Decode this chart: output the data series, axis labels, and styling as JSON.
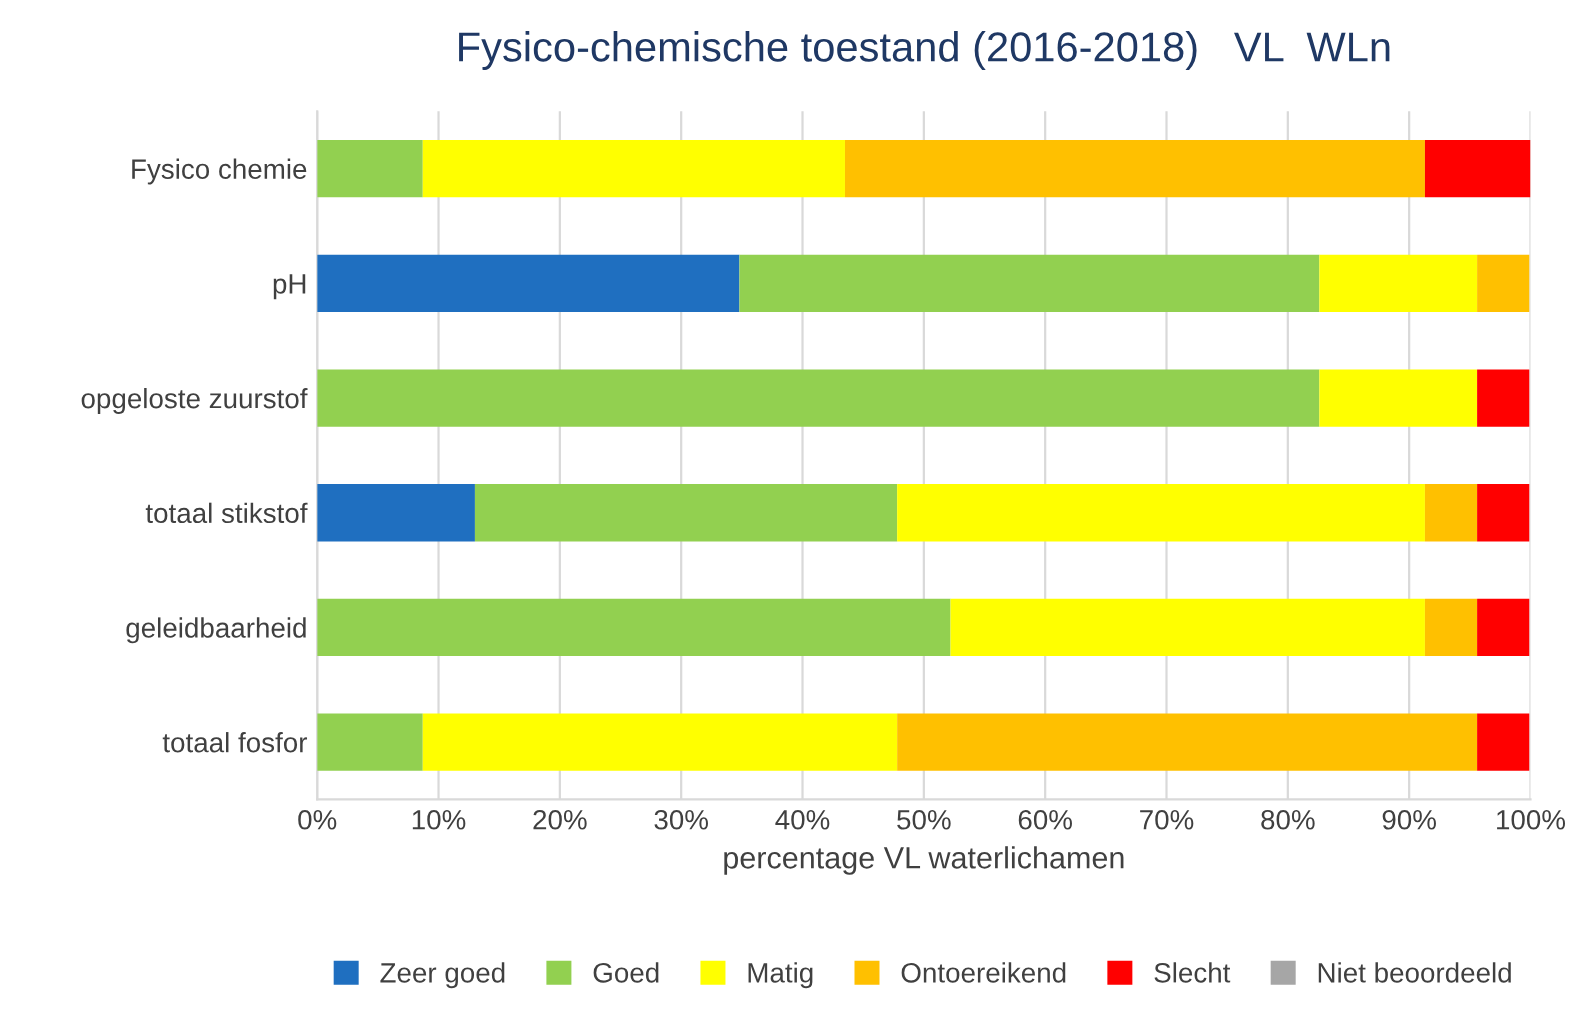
{
  "chart_data": {
    "type": "bar",
    "orientation": "horizontal",
    "stacked": true,
    "title": "Fysico-chemische toestand (2016-2018)   VL  WLn",
    "xlabel": "percentage VL waterlichamen",
    "categories": [
      "Fysico chemie",
      "pH",
      "opgeloste zuurstof",
      "totaal stikstof",
      "geleidbaarheid",
      "totaal fosfor"
    ],
    "series": [
      {
        "name": "Zeer goed",
        "color": "#1f6fc0",
        "values": [
          null,
          34.8,
          null,
          13.0,
          null,
          null
        ]
      },
      {
        "name": "Goed",
        "color": "#92d050",
        "values": [
          8.7,
          47.8,
          82.6,
          34.8,
          52.2,
          8.7
        ]
      },
      {
        "name": "Matig",
        "color": "#ffff00",
        "values": [
          34.8,
          13.0,
          13.0,
          43.5,
          39.1,
          39.1
        ]
      },
      {
        "name": "Ontoereikend",
        "color": "#ffc000",
        "values": [
          47.8,
          4.3,
          null,
          4.3,
          4.3,
          47.8
        ]
      },
      {
        "name": "Slecht",
        "color": "#ff0000",
        "values": [
          8.7,
          null,
          4.3,
          4.3,
          4.3,
          4.3
        ]
      },
      {
        "name": "Niet beoordeeld",
        "color": "#a6a6a6",
        "values": [
          null,
          null,
          null,
          null,
          null,
          null
        ]
      }
    ],
    "xlim": [
      0,
      100
    ],
    "xticks": [
      {
        "value": 0,
        "label": "0%"
      },
      {
        "value": 10,
        "label": "10%"
      },
      {
        "value": 20,
        "label": "20%"
      },
      {
        "value": 30,
        "label": "30%"
      },
      {
        "value": 40,
        "label": "40%"
      },
      {
        "value": 50,
        "label": "50%"
      },
      {
        "value": 60,
        "label": "60%"
      },
      {
        "value": 70,
        "label": "70%"
      },
      {
        "value": 80,
        "label": "80%"
      },
      {
        "value": 90,
        "label": "90%"
      },
      {
        "value": 100,
        "label": "100%"
      }
    ],
    "grid": "x",
    "legend": "bottom"
  }
}
